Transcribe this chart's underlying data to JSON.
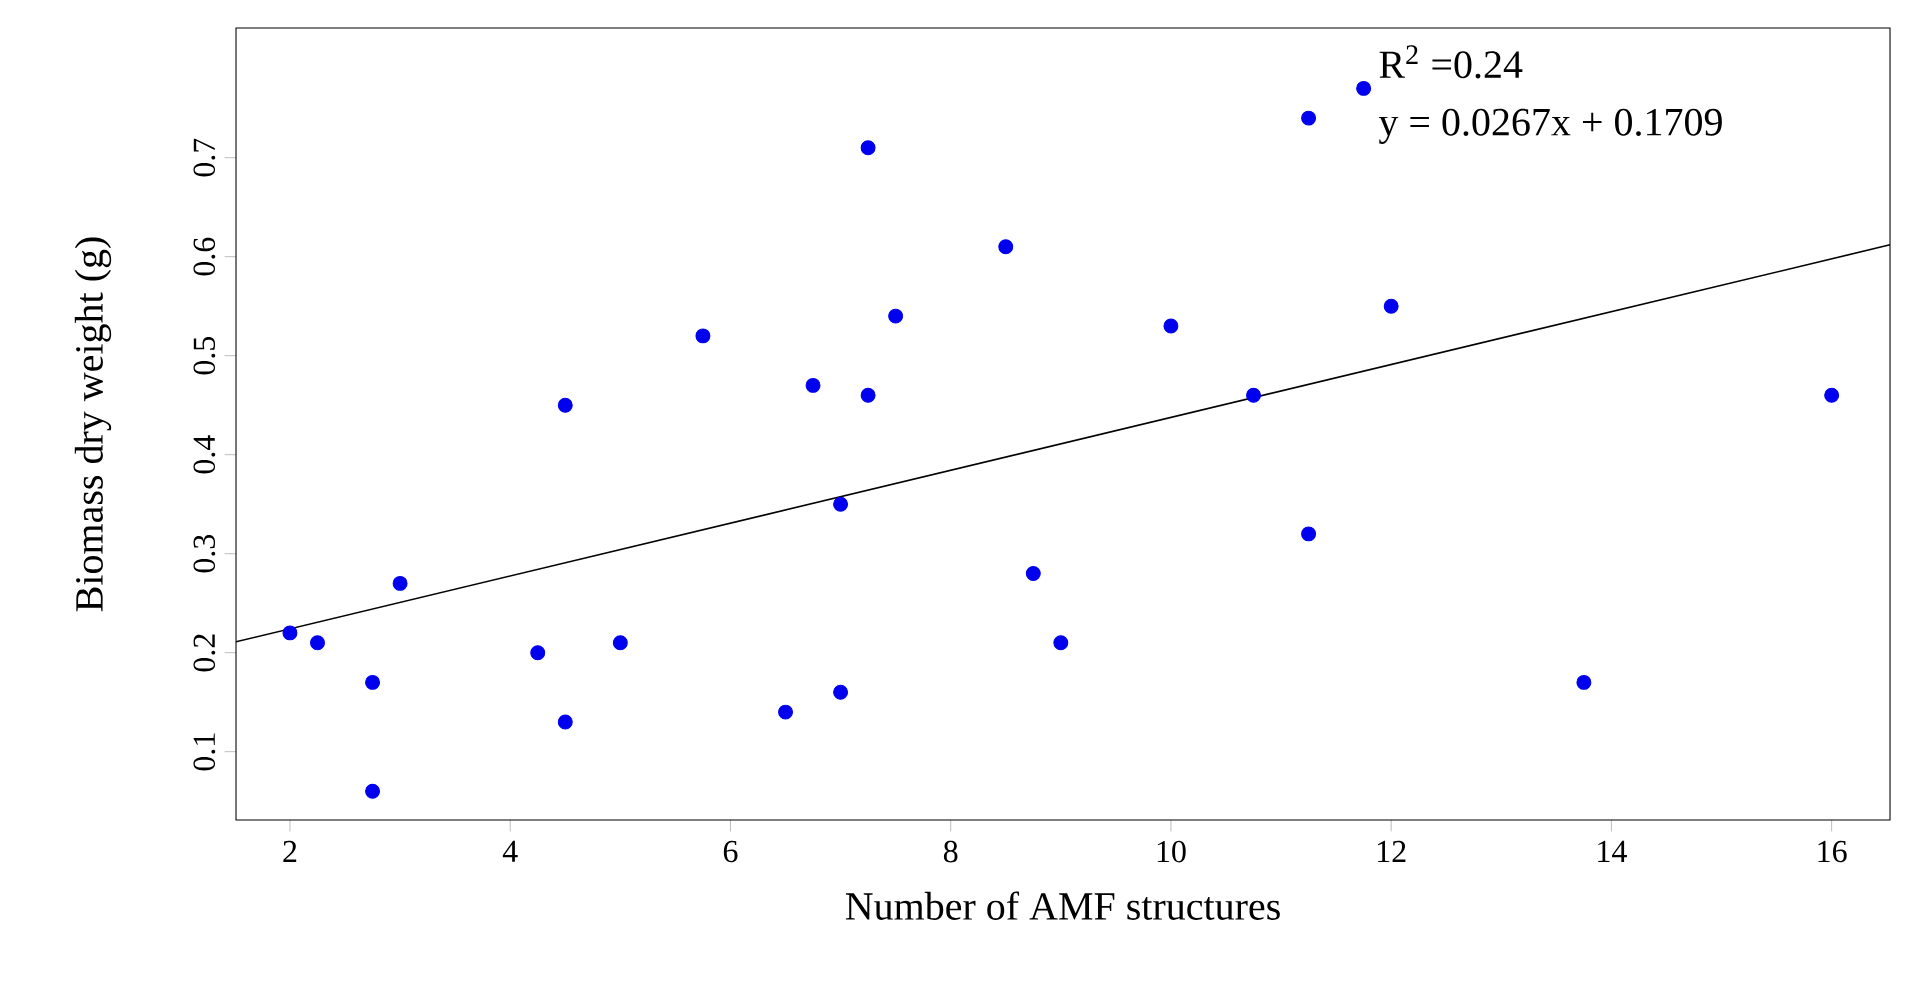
{
  "chart_data": {
    "type": "scatter",
    "xlabel": "Number of AMF structures",
    "ylabel": "Biomass dry weight (g)",
    "annotations": [
      "R$^{2}$ =0.24",
      "y = 0.0267x + 0.1709"
    ],
    "xlim": [
      1.51,
      16.53
    ],
    "ylim": [
      0.031,
      0.831
    ],
    "xticks": [
      2,
      4,
      6,
      8,
      10,
      12,
      14,
      16
    ],
    "yticks": [
      0.1,
      0.2,
      0.3,
      0.4,
      0.5,
      0.6,
      0.7
    ],
    "marker": "circle",
    "grid": false,
    "series": [
      {
        "color": "#0000ee",
        "x": [
          2,
          2.25,
          2.75,
          2.75,
          3,
          4.25,
          4.5,
          4.5,
          5,
          5.75,
          6.5,
          6.75,
          7,
          7,
          7.25,
          7.25,
          7.5,
          8.5,
          8.75,
          9,
          10,
          10.75,
          11.25,
          11.25,
          11.75,
          12,
          13.75,
          16
        ],
        "values": [
          0.22,
          0.21,
          0.17,
          0.06,
          0.27,
          0.2,
          0.45,
          0.13,
          0.21,
          0.52,
          0.14,
          0.47,
          0.35,
          0.16,
          0.71,
          0.46,
          0.54,
          0.61,
          0.28,
          0.21,
          0.53,
          0.46,
          0.74,
          0.32,
          0.77,
          0.55,
          0.17,
          0.46
        ]
      },
      {
        "type": "line",
        "marker": "none",
        "color": "#000000",
        "x": [
          1.51,
          16.53
        ],
        "values": [
          0.211,
          0.612
        ]
      }
    ]
  }
}
